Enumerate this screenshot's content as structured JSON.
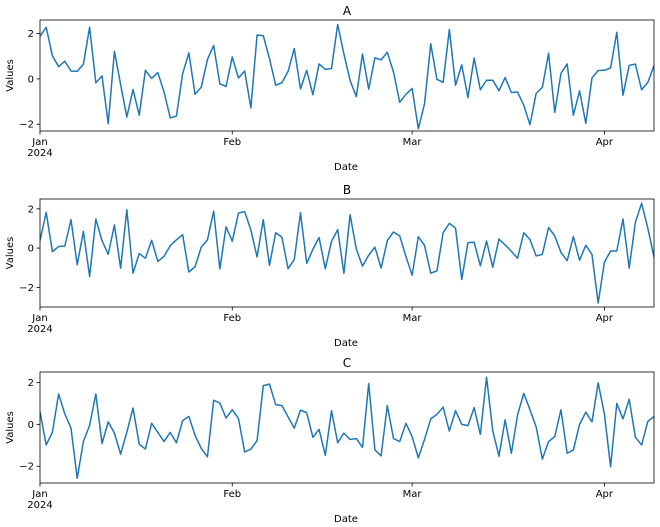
{
  "chart_data": [
    {
      "type": "line",
      "title": "A",
      "xlabel": "Date",
      "ylabel": "Values",
      "x_start": "2024-01-01",
      "x_end": "2024-04-09",
      "xticks": [
        {
          "date": "2024-01-01",
          "label": "Jan",
          "sublabel": "2024"
        },
        {
          "date": "2024-02-01",
          "label": "Feb",
          "sublabel": ""
        },
        {
          "date": "2024-03-01",
          "label": "Mar",
          "sublabel": ""
        },
        {
          "date": "2024-04-01",
          "label": "Apr",
          "sublabel": ""
        }
      ],
      "yticks": [
        -2,
        0,
        2
      ],
      "ylim": [
        -2.3,
        2.6
      ],
      "grid": false,
      "color": "#1f77b4",
      "values": [
        1.88,
        2.28,
        1.02,
        0.54,
        0.78,
        0.35,
        0.33,
        0.65,
        2.28,
        -0.17,
        0.13,
        -1.98,
        1.22,
        -0.25,
        -1.68,
        -0.47,
        -1.6,
        0.38,
        0.02,
        0.28,
        -0.58,
        -1.72,
        -1.64,
        0.23,
        1.15,
        -0.68,
        -0.37,
        0.86,
        1.48,
        -0.22,
        -0.33,
        0.97,
        0.04,
        0.35,
        -1.28,
        1.93,
        1.91,
        0.9,
        -0.28,
        -0.17,
        0.33,
        1.34,
        -0.44,
        0.38,
        -0.7,
        0.66,
        0.42,
        0.46,
        2.4,
        1.1,
        -0.07,
        -0.78,
        1.1,
        -0.45,
        0.93,
        0.84,
        1.18,
        0.3,
        -1.03,
        -0.68,
        -0.42,
        -2.2,
        -1.1,
        1.55,
        -0.02,
        -0.15,
        2.18,
        -0.28,
        0.62,
        -0.82,
        0.92,
        -0.48,
        -0.06,
        -0.06,
        -0.52,
        0.06,
        -0.6,
        -0.58,
        -1.16,
        -2.02,
        -0.64,
        -0.37,
        1.13,
        -1.48,
        0.24,
        0.66,
        -1.6,
        -0.53,
        -1.96,
        0.04,
        0.37,
        0.38,
        0.48,
        2.06,
        -0.72,
        0.6,
        0.65,
        -0.48,
        -0.16,
        0.58
      ]
    },
    {
      "type": "line",
      "title": "B",
      "xlabel": "Date",
      "ylabel": "Values",
      "x_start": "2024-01-01",
      "x_end": "2024-04-09",
      "xticks": [
        {
          "date": "2024-01-01",
          "label": "Jan",
          "sublabel": "2024"
        },
        {
          "date": "2024-02-01",
          "label": "Feb",
          "sublabel": ""
        },
        {
          "date": "2024-03-01",
          "label": "Mar",
          "sublabel": ""
        },
        {
          "date": "2024-04-01",
          "label": "Apr",
          "sublabel": ""
        }
      ],
      "yticks": [
        -2,
        0,
        2
      ],
      "ylim": [
        -3.0,
        2.5
      ],
      "grid": false,
      "color": "#1f77b4",
      "values": [
        0.38,
        1.82,
        -0.18,
        0.08,
        0.1,
        1.45,
        -0.85,
        0.85,
        -1.45,
        1.48,
        0.38,
        -0.32,
        1.18,
        -1.02,
        1.95,
        -1.28,
        -0.28,
        -0.52,
        0.4,
        -0.68,
        -0.42,
        0.12,
        0.42,
        0.68,
        -1.22,
        -0.95,
        0.05,
        0.42,
        1.88,
        -1.06,
        1.08,
        0.35,
        1.78,
        1.86,
        0.92,
        -0.45,
        1.45,
        -0.88,
        0.78,
        0.56,
        -1.05,
        -0.58,
        1.8,
        -0.78,
        -0.06,
        0.54,
        -1.05,
        0.34,
        0.94,
        -1.28,
        1.7,
        -0.05,
        -0.92,
        -0.36,
        0.05,
        -1.02,
        0.38,
        0.82,
        0.62,
        -0.42,
        -1.38,
        0.58,
        0.14,
        -1.28,
        -1.16,
        0.78,
        1.26,
        1.02,
        -1.6,
        0.28,
        0.3,
        -0.9,
        0.36,
        -0.98,
        0.46,
        0.16,
        -0.16,
        -0.52,
        0.78,
        0.44,
        -0.4,
        -0.32,
        1.05,
        0.62,
        -0.22,
        -0.64,
        0.58,
        -0.62,
        0.14,
        -0.32,
        -2.8,
        -0.72,
        -0.15,
        -0.15,
        1.48,
        -1.02,
        1.32,
        2.28,
        1.02,
        -0.46
      ]
    },
    {
      "type": "line",
      "title": "C",
      "xlabel": "Date",
      "ylabel": "Values",
      "x_start": "2024-01-01",
      "x_end": "2024-04-09",
      "xticks": [
        {
          "date": "2024-01-01",
          "label": "Jan",
          "sublabel": "2024"
        },
        {
          "date": "2024-02-01",
          "label": "Feb",
          "sublabel": ""
        },
        {
          "date": "2024-03-01",
          "label": "Mar",
          "sublabel": ""
        },
        {
          "date": "2024-04-01",
          "label": "Apr",
          "sublabel": ""
        }
      ],
      "yticks": [
        -2,
        0,
        2
      ],
      "ylim": [
        -2.8,
        2.5
      ],
      "grid": false,
      "color": "#1f77b4",
      "values": [
        0.6,
        -0.98,
        -0.38,
        1.45,
        0.5,
        -0.18,
        -2.58,
        -0.82,
        -0.05,
        1.45,
        -0.92,
        0.12,
        -0.42,
        -1.42,
        -0.38,
        0.78,
        -0.95,
        -1.18,
        0.05,
        -0.38,
        -0.82,
        -0.38,
        -0.88,
        0.18,
        0.38,
        -0.52,
        -1.15,
        -1.55,
        1.15,
        1.02,
        0.3,
        0.7,
        0.28,
        -1.32,
        -1.18,
        -0.78,
        1.85,
        1.92,
        0.94,
        0.9,
        0.36,
        -0.18,
        0.68,
        0.56,
        -0.62,
        -0.24,
        -1.48,
        0.65,
        -0.88,
        -0.42,
        -0.72,
        -0.68,
        -1.1,
        1.95,
        -1.22,
        -1.5,
        0.9,
        -0.68,
        -0.82,
        0.05,
        -0.58,
        -1.6,
        -0.72,
        0.26,
        0.48,
        0.82,
        -0.32,
        0.65,
        0.0,
        -0.06,
        0.8,
        -0.48,
        2.25,
        -0.3,
        -1.52,
        0.22,
        -1.38,
        0.45,
        1.48,
        0.7,
        -0.12,
        -1.66,
        -0.82,
        -0.58,
        0.7,
        -1.38,
        -1.22,
        0.0,
        0.58,
        0.12,
        1.98,
        0.5,
        -2.02,
        1.0,
        0.26,
        1.2,
        -0.62,
        -0.98,
        0.14,
        0.38
      ]
    }
  ]
}
